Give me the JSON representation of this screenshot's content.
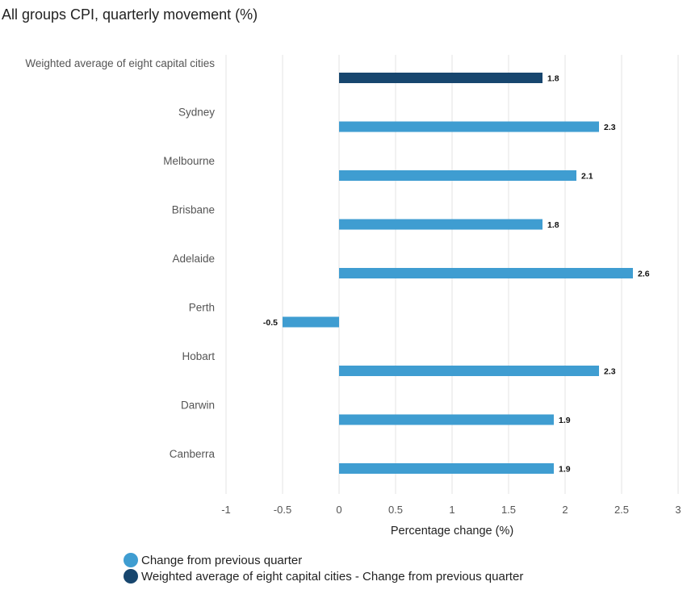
{
  "chart_data": {
    "type": "bar",
    "orientation": "horizontal",
    "title": "All groups CPI, quarterly movement (%)",
    "xlabel": "Percentage change (%)",
    "ylabel": "",
    "xlim": [
      -1,
      3
    ],
    "xticks": [
      -1,
      -0.5,
      0,
      0.5,
      1,
      1.5,
      2,
      2.5,
      3
    ],
    "xtick_labels": [
      "-1",
      "-0.5",
      "0",
      "0.5",
      "1",
      "1.5",
      "2",
      "2.5",
      "3"
    ],
    "grid": true,
    "categories": [
      "Weighted average of eight capital cities",
      "Sydney",
      "Melbourne",
      "Brisbane",
      "Adelaide",
      "Perth",
      "Hobart",
      "Darwin",
      "Canberra"
    ],
    "series": [
      {
        "name": "Weighted average of eight capital cities - Change from previous quarter",
        "color": "#17466e",
        "values": [
          1.8,
          null,
          null,
          null,
          null,
          null,
          null,
          null,
          null
        ],
        "value_labels": [
          "1.8",
          "",
          "",
          "",
          "",
          "",
          "",
          "",
          ""
        ]
      },
      {
        "name": "Change from previous quarter",
        "color": "#3f9dd1",
        "values": [
          null,
          2.3,
          2.1,
          1.8,
          2.6,
          -0.5,
          2.3,
          1.9,
          1.9
        ],
        "value_labels": [
          "",
          "2.3",
          "2.1",
          "1.8",
          "2.6",
          "-0.5",
          "2.3",
          "1.9",
          "1.9"
        ]
      }
    ],
    "legend": {
      "position": "bottom-left",
      "entries": [
        {
          "label": "Change from previous quarter",
          "color": "#3f9dd1"
        },
        {
          "label": "Weighted average of eight capital cities - Change from previous quarter",
          "color": "#17466e"
        }
      ]
    }
  }
}
